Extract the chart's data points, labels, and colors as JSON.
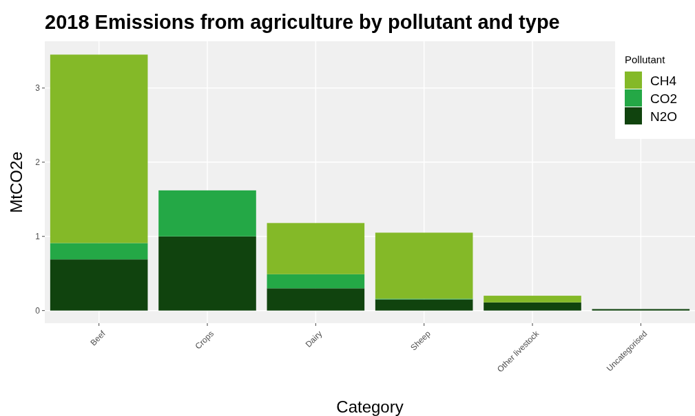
{
  "chart_data": {
    "type": "bar",
    "title": "2018 Emissions from agriculture by pollutant and type",
    "xlabel": "Category",
    "ylabel": "MtCO2e",
    "legend_title": "Pollutant",
    "categories": [
      "Beef",
      "Crops",
      "Dairy",
      "Sheep",
      "Other livestock",
      "Uncategorised"
    ],
    "series": [
      {
        "name": "N2O",
        "color": "#10430e",
        "values": [
          0.69,
          1.0,
          0.3,
          0.15,
          0.11,
          0.02
        ]
      },
      {
        "name": "CO2",
        "color": "#24a846",
        "values": [
          0.22,
          0.62,
          0.19,
          0.01,
          0,
          0
        ]
      },
      {
        "name": "CH4",
        "color": "#84b928",
        "values": [
          2.54,
          0,
          0.69,
          0.89,
          0.09,
          0
        ]
      }
    ],
    "stacked": true,
    "ylim": [
      -0.17,
      3.63
    ],
    "yticks": [
      0,
      1,
      2,
      3
    ],
    "grid": true,
    "legend": "top right"
  }
}
